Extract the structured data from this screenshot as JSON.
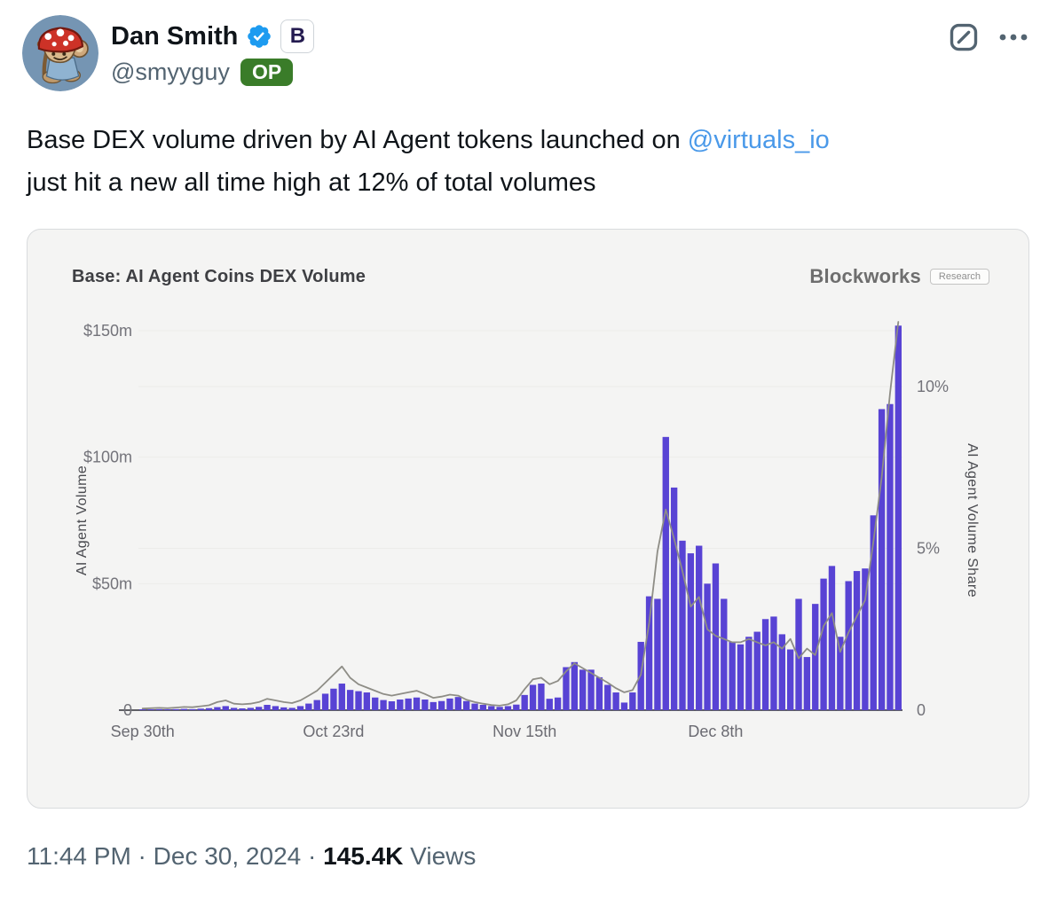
{
  "header": {
    "display_name": "Dan Smith",
    "handle": "@smyyguy",
    "op_badge": "OP",
    "brand_badge_letter": "B"
  },
  "tweet": {
    "text_before": "Base DEX volume driven by AI Agent tokens launched on ",
    "link": "@virtuals_io",
    "text_after": "just hit a new all time high at 12% of total volumes"
  },
  "footer": {
    "meta": "11:44 PM · Dec 30, 2024 · ",
    "views_count": "145.4K",
    "views_label": " Views"
  },
  "colors": {
    "bar": "#5843d4",
    "line": "#8e8d86",
    "link": "#4a99e9",
    "axis": "#5f6065",
    "grid": "#ececea",
    "card_bg": "#f4f4f3",
    "op_badge_bg": "#3a7c29",
    "verified_blue": "#1d9bf0"
  },
  "chart_data": {
    "type": "bar",
    "title": "Base: AI Agent Coins DEX Volume",
    "source": "Blockworks",
    "source_badge": "Research",
    "x_start": "Sep 30, 2024",
    "x_end": "Dec 30, 2024",
    "x_tick_labels": [
      "Sep 30th",
      "Oct 23rd",
      "Nov 15th",
      "Dec 8th"
    ],
    "x_tick_day_index": [
      0,
      23,
      46,
      69
    ],
    "left_axis": {
      "label": "AI Agent Volume",
      "unit": "$m",
      "tick_labels": [
        "$150m",
        "$100m",
        "$50m",
        "0"
      ],
      "tick_values": [
        150,
        100,
        50,
        0
      ],
      "range": [
        0,
        150
      ]
    },
    "right_axis": {
      "label": "AI Agent Volume Share",
      "unit": "%",
      "tick_labels": [
        "10%",
        "5%",
        "0"
      ],
      "tick_values": [
        10,
        5,
        0
      ],
      "range": [
        0,
        12
      ]
    },
    "series": [
      {
        "name": "AI Agent Volume",
        "type": "bar",
        "axis": "left",
        "color": "#5843d4",
        "values": [
          0.3,
          0.3,
          0.4,
          0.3,
          0.4,
          0.5,
          0.4,
          0.6,
          0.8,
          1.2,
          1.6,
          0.9,
          0.7,
          0.9,
          1.3,
          2.1,
          1.6,
          1.1,
          0.9,
          1.6,
          2.6,
          4,
          6.5,
          8.5,
          10.5,
          8,
          7.5,
          7,
          5,
          4,
          3.5,
          4.2,
          4.6,
          5,
          4.2,
          3.2,
          3.6,
          4.6,
          5.2,
          3.6,
          2.6,
          2.1,
          1.6,
          1.3,
          1.6,
          2.2,
          6,
          10,
          10.5,
          4.5,
          5,
          17,
          19,
          16,
          16,
          13,
          10,
          7,
          3,
          7,
          27,
          45,
          44,
          108,
          88,
          67,
          62,
          65,
          50,
          58,
          44,
          27,
          26,
          29,
          31,
          36,
          37,
          30,
          24,
          44,
          21,
          42,
          52,
          57,
          29,
          51,
          55,
          56,
          77,
          119,
          121,
          152
        ]
      },
      {
        "name": "AI Agent Volume Share",
        "type": "line",
        "axis": "right",
        "color": "#8e8d86",
        "values": [
          0.05,
          0.06,
          0.07,
          0.06,
          0.08,
          0.1,
          0.09,
          0.12,
          0.15,
          0.25,
          0.3,
          0.2,
          0.18,
          0.2,
          0.25,
          0.35,
          0.3,
          0.25,
          0.22,
          0.3,
          0.45,
          0.6,
          0.85,
          1.1,
          1.35,
          1.0,
          0.8,
          0.7,
          0.6,
          0.5,
          0.45,
          0.5,
          0.55,
          0.6,
          0.5,
          0.38,
          0.42,
          0.48,
          0.45,
          0.32,
          0.25,
          0.2,
          0.16,
          0.14,
          0.18,
          0.3,
          0.65,
          0.95,
          1.0,
          0.8,
          0.9,
          1.2,
          1.45,
          1.3,
          1.15,
          1.0,
          0.85,
          0.68,
          0.55,
          0.62,
          1.1,
          2.7,
          4.9,
          6.2,
          5.3,
          4.3,
          3.2,
          3.5,
          2.5,
          2.3,
          2.2,
          2.1,
          2.1,
          2.2,
          2.1,
          2.0,
          2.1,
          1.9,
          2.2,
          1.6,
          1.9,
          1.7,
          2.6,
          3.0,
          1.8,
          2.4,
          2.9,
          3.4,
          5.2,
          7.2,
          9.8,
          12.0
        ]
      }
    ]
  }
}
